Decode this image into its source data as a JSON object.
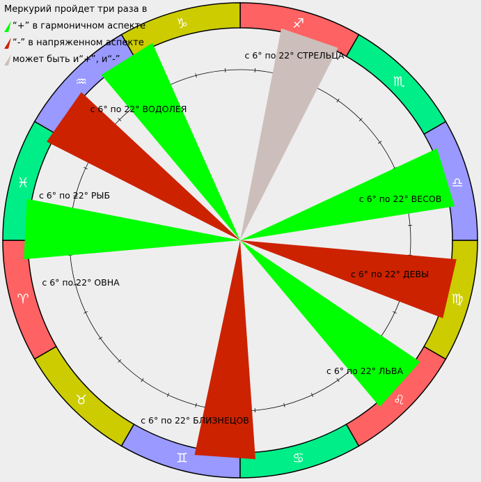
{
  "legend": {
    "title": "Меркурий пройдет три раза в",
    "items": [
      {
        "text": "“+” в гармоничном аспекте",
        "color": "#00ff00",
        "icon": "green-triangle-icon"
      },
      {
        "text": "“-” в напряженном аспекте",
        "color": "#cc2200",
        "icon": "red-triangle-icon"
      },
      {
        "text": "может быть и“+”, и“-”",
        "color": "#ccbfbb",
        "icon": "beige-triangle-icon"
      }
    ]
  },
  "zodiac_ring": [
    {
      "sign": "aries",
      "glyph": "♈",
      "color": "#ff6262"
    },
    {
      "sign": "taurus",
      "glyph": "♉",
      "color": "#cccc00"
    },
    {
      "sign": "gemini",
      "glyph": "♊",
      "color": "#9999ff"
    },
    {
      "sign": "cancer",
      "glyph": "♋",
      "color": "#00ee88"
    },
    {
      "sign": "leo",
      "glyph": "♌",
      "color": "#ff6262"
    },
    {
      "sign": "virgo",
      "glyph": "♍",
      "color": "#cccc00"
    },
    {
      "sign": "libra",
      "glyph": "♎",
      "color": "#9999ff"
    },
    {
      "sign": "scorpio",
      "glyph": "♏",
      "color": "#00ee88"
    },
    {
      "sign": "sagittarius",
      "glyph": "♐",
      "color": "#ff6262"
    },
    {
      "sign": "capricorn",
      "glyph": "♑",
      "color": "#cccc00"
    },
    {
      "sign": "aquarius",
      "glyph": "♒",
      "color": "#9999ff"
    },
    {
      "sign": "pisces",
      "glyph": "♓",
      "color": "#00ee88"
    }
  ],
  "sectors": [
    {
      "id": "sagittarius",
      "label": "с 6° по 22° СТРЕЛЬЦА",
      "color": "#ccbfbb",
      "aspect": "mixed"
    },
    {
      "id": "libra",
      "label": "с 6° по 22° ВЕСОВ",
      "color": "#00ff00",
      "aspect": "harmonious"
    },
    {
      "id": "virgo",
      "label": "с 6° по 22° ДЕВЫ",
      "color": "#cc2200",
      "aspect": "tense"
    },
    {
      "id": "leo",
      "label": "с 6° по 22° ЛЬВА",
      "color": "#00ff00",
      "aspect": "harmonious"
    },
    {
      "id": "gemini",
      "label": "с 6° по 22° БЛИЗНЕЦОВ",
      "color": "#cc2200",
      "aspect": "tense"
    },
    {
      "id": "aries",
      "label": "с 6° по 22° ОВНА",
      "color": "#00ff00",
      "aspect": "harmonious"
    },
    {
      "id": "pisces",
      "label": "с 6° по 22° РЫБ",
      "color": "#cc2200",
      "aspect": "tense"
    },
    {
      "id": "aquarius",
      "label": "с 6° по 22° ВОДОЛЕЯ",
      "color": "#00ff00",
      "aspect": "harmonious"
    }
  ],
  "colors": {
    "background": "#eeeeee",
    "ring_stroke": "#000000"
  }
}
